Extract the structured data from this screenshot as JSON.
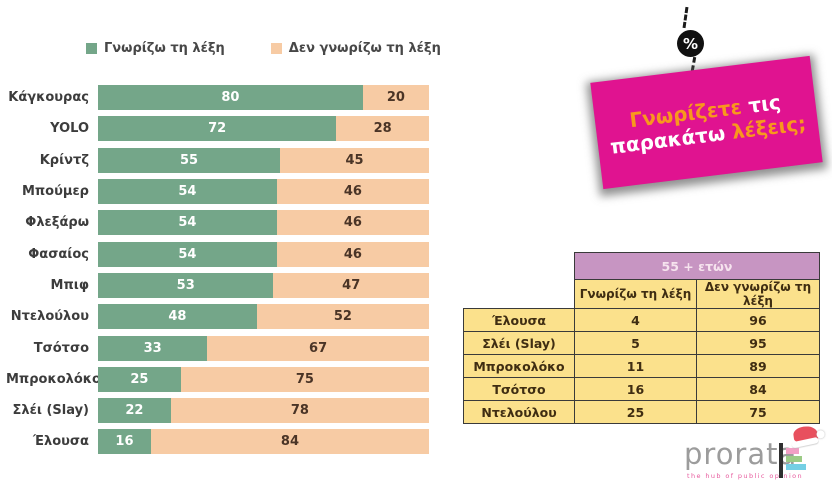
{
  "colors": {
    "know_green": "#74A689",
    "dont_peach": "#F7CBA4",
    "card_magenta": "#E01390",
    "card_orange": "#F8981D",
    "table_mauve": "#C795C2",
    "table_yellow": "#FBE18C",
    "table_border": "#3A3A3A",
    "logo_gray": "#9C9C9C",
    "tagline_pink": "#E75B9E"
  },
  "legend": {
    "know": "Γνωρίζω τη λέξη",
    "dont_know": "Δεν γνωρίζω τη λέξη"
  },
  "chart_data": {
    "type": "bar",
    "orientation": "horizontal",
    "stacked": true,
    "xlim": [
      0,
      100
    ],
    "value_labels": "inside-center",
    "legend_position": "top",
    "categories": [
      "Κάγκουρας",
      "YOLO",
      "Κρίντζ",
      "Μπούμερ",
      "Φλεξάρω",
      "Φασαίος",
      "Μπιφ",
      "Ντελούλου",
      "Τσότσο",
      "Μπροκολόκο",
      "Σλέι (Slay)",
      "Έλουσα"
    ],
    "series": [
      {
        "name": "Γνωρίζω τη λέξη",
        "color": "#74A689",
        "values": [
          80,
          72,
          55,
          54,
          54,
          54,
          53,
          48,
          33,
          25,
          22,
          16
        ]
      },
      {
        "name": "Δεν γνωρίζω τη λέξη",
        "color": "#F7CBA4",
        "values": [
          20,
          28,
          45,
          46,
          46,
          46,
          47,
          52,
          67,
          75,
          78,
          84
        ]
      }
    ]
  },
  "percent_badge": {
    "symbol": "%"
  },
  "question_card": {
    "word1": "Γνωρίζετε",
    "word2": " τις",
    "word3": "παρακάτω",
    "word4": " λέξεις;"
  },
  "age_table": {
    "age_header": "55 + ετών",
    "columns": [
      "Γνωρίζω τη λέξη",
      "Δεν γνωρίζω τη λέξη"
    ],
    "rows": [
      {
        "label": "Έλουσα",
        "know": 4,
        "dont_know": 96
      },
      {
        "label": "Σλέι (Slay)",
        "know": 5,
        "dont_know": 95
      },
      {
        "label": "Μπροκολόκο",
        "know": 11,
        "dont_know": 89
      },
      {
        "label": "Τσότσο",
        "know": 16,
        "dont_know": 84
      },
      {
        "label": "Ντελούλου",
        "know": 25,
        "dont_know": 75
      }
    ]
  },
  "logo": {
    "name": "prorata",
    "tagline": "the hub of public opinion"
  }
}
